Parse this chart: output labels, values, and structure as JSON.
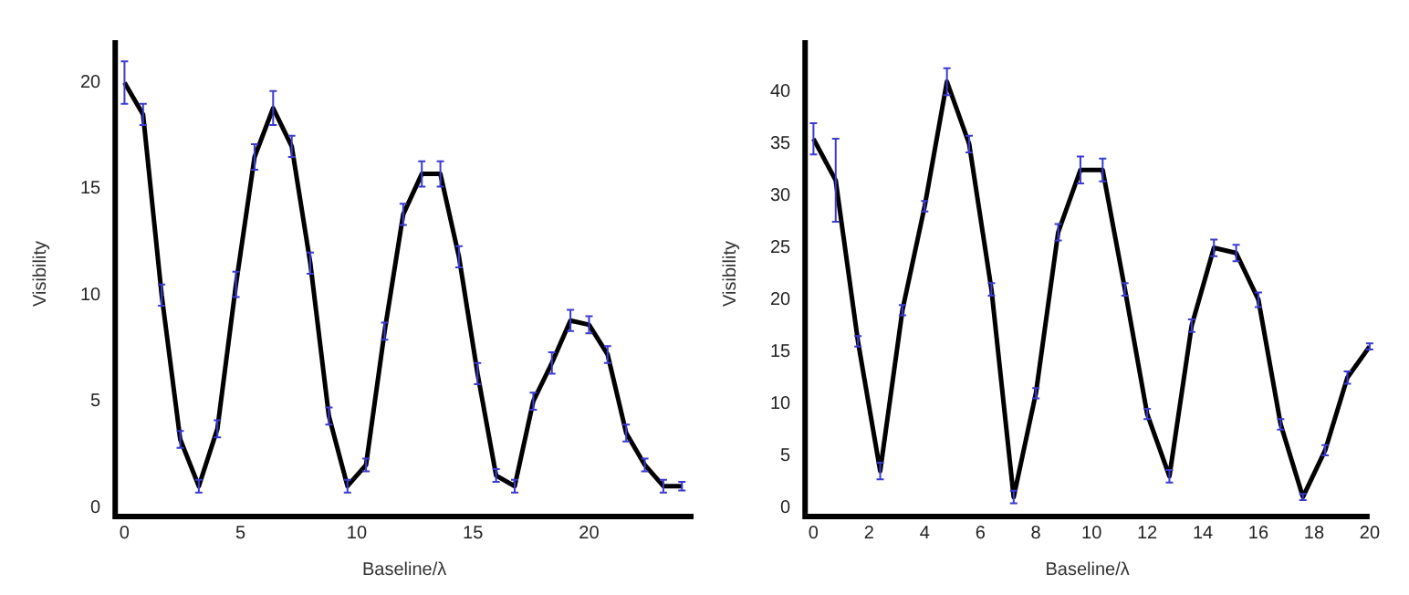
{
  "chart_data": [
    {
      "type": "line",
      "xlabel": "Baseline/λ",
      "ylabel": "Visibility",
      "xlim": [
        -0.4,
        24.5
      ],
      "ylim": [
        0,
        22
      ],
      "xticks": [
        0,
        5,
        10,
        15,
        20
      ],
      "yticks": [
        0,
        5,
        10,
        15,
        20
      ],
      "grid": false,
      "legend": false,
      "marker": "none",
      "line_style": "solid",
      "x": [
        0,
        0.8,
        1.6,
        2.4,
        3.2,
        4.0,
        4.8,
        5.6,
        6.4,
        7.2,
        8.0,
        8.8,
        9.6,
        10.4,
        11.2,
        12.0,
        12.8,
        13.6,
        14.4,
        15.2,
        16.0,
        16.8,
        17.6,
        18.4,
        19.2,
        20.0,
        20.8,
        21.6,
        22.4,
        23.2,
        24.0
      ],
      "series": [
        {
          "color": "#000000",
          "values": [
            20,
            18.5,
            10,
            3.2,
            1,
            3.7,
            10.5,
            16.5,
            18.8,
            17,
            11.5,
            4.3,
            1,
            2,
            8.3,
            13.8,
            15.7,
            15.7,
            11.8,
            6.3,
            1.5,
            1,
            5,
            6.8,
            8.8,
            8.6,
            7.2,
            3.5,
            2,
            1,
            1
          ],
          "errors": [
            1,
            0.5,
            0.5,
            0.4,
            0.3,
            0.4,
            0.6,
            0.6,
            0.8,
            0.5,
            0.5,
            0.4,
            0.3,
            0.3,
            0.4,
            0.5,
            0.6,
            0.6,
            0.5,
            0.5,
            0.3,
            0.3,
            0.4,
            0.5,
            0.5,
            0.4,
            0.4,
            0.4,
            0.3,
            0.3,
            0.2
          ]
        }
      ]
    },
    {
      "type": "line",
      "xlabel": "Baseline/λ",
      "ylabel": "Visibility",
      "xlim": [
        -0.3,
        20
      ],
      "ylim": [
        0,
        45
      ],
      "xticks": [
        0,
        2,
        4,
        6,
        8,
        10,
        12,
        14,
        16,
        18,
        20
      ],
      "yticks": [
        0,
        5,
        10,
        15,
        20,
        25,
        30,
        35,
        40
      ],
      "grid": false,
      "legend": false,
      "marker": "none",
      "line_style": "solid",
      "x": [
        0,
        0.8,
        1.6,
        2.4,
        3.2,
        4.0,
        4.8,
        5.6,
        6.4,
        7.2,
        8.0,
        8.8,
        9.6,
        10.4,
        11.2,
        12.0,
        12.8,
        13.6,
        14.4,
        15.2,
        16.0,
        16.8,
        17.6,
        18.4,
        19.2,
        20.0
      ],
      "series": [
        {
          "color": "#000000",
          "values": [
            35.5,
            31.5,
            16,
            3.5,
            19,
            29,
            41,
            35,
            21,
            1,
            11,
            26.5,
            32.5,
            32.5,
            21,
            9,
            3,
            17.5,
            25,
            24.5,
            20,
            8,
            1,
            5.5,
            12.5,
            15.5
          ],
          "errors": [
            1.5,
            [
              27.5,
              35.5
            ],
            0.5,
            0.8,
            0.5,
            0.5,
            1.3,
            0.8,
            0.6,
            0.6,
            0.5,
            0.8,
            1.3,
            1.1,
            0.6,
            0.5,
            0.6,
            0.6,
            0.8,
            0.8,
            0.7,
            0.5,
            0.3,
            0.5,
            0.6,
            0.3
          ]
        }
      ]
    }
  ]
}
